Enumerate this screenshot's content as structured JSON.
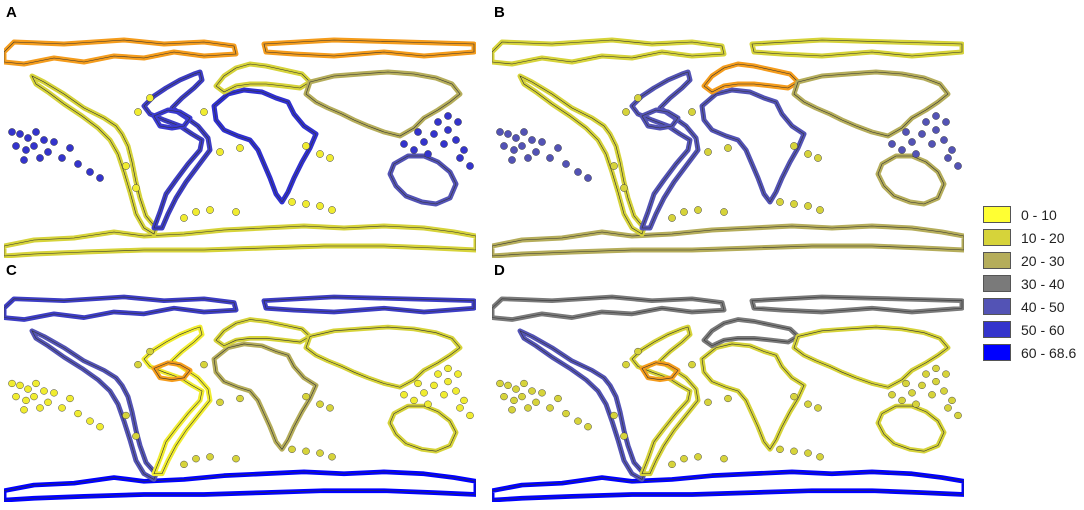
{
  "panels": [
    {
      "label": "A",
      "colors": {
        "arctic": "#f49c1c",
        "antarctic": "#d6d33a",
        "americas_w": "#d6d33a",
        "americas_e": "#3d3dc4",
        "africa": "#3030d0",
        "europe": "#d6d33a",
        "asia": "#b5ad5b",
        "australia": "#5353b5",
        "pacific": "#3434cc",
        "atlantic_pts": "#f0ec30",
        "caribbean": "#3a3ad0"
      }
    },
    {
      "label": "B",
      "colors": {
        "arctic": "#d6d33a",
        "antarctic": "#b5ad5b",
        "americas_w": "#d6d33a",
        "americas_e": "#5353b5",
        "africa": "#5353b5",
        "europe": "#f49c1c",
        "asia": "#b5ad5b",
        "australia": "#b5ad5b",
        "pacific": "#5353b5",
        "atlantic_pts": "#d6d33a",
        "caribbean": "#5353b5"
      }
    },
    {
      "label": "C",
      "colors": {
        "arctic": "#3d3dc4",
        "antarctic": "#0000ff",
        "americas_w": "#5353b5",
        "americas_e": "#f0ec30",
        "africa": "#b5ad5b",
        "europe": "#d6d33a",
        "asia": "#d6d33a",
        "australia": "#d6d33a",
        "pacific": "#f0ec30",
        "atlantic_pts": "#d6d33a",
        "caribbean": "#f49c1c"
      }
    },
    {
      "label": "D",
      "colors": {
        "arctic": "#7a7a7a",
        "antarctic": "#0000ff",
        "americas_w": "#5353b5",
        "americas_e": "#d6d33a",
        "africa": "#d6d33a",
        "europe": "#7a7a7a",
        "asia": "#d6d33a",
        "australia": "#d6d33a",
        "pacific": "#d6d33a",
        "atlantic_pts": "#d6d33a",
        "caribbean": "#f49c1c"
      }
    }
  ],
  "legend": [
    {
      "label": "0 - 10",
      "color": "#ffff33"
    },
    {
      "label": "10 - 20",
      "color": "#d6d33a"
    },
    {
      "label": "20 - 30",
      "color": "#b5ad5b"
    },
    {
      "label": "30 - 40",
      "color": "#7a7a7a"
    },
    {
      "label": "40 - 50",
      "color": "#5353b5"
    },
    {
      "label": "50 - 60",
      "color": "#3434cc"
    },
    {
      "label": "60 - 68.6",
      "color": "#0000ff"
    }
  ]
}
